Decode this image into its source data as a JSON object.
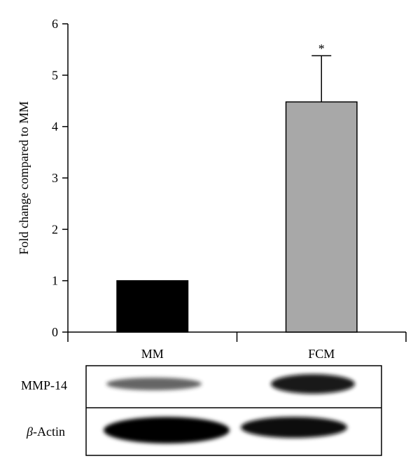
{
  "chart_data": {
    "type": "bar",
    "title": "",
    "xlabel": "",
    "ylabel": "Fold change compared to MM",
    "ylim": [
      0,
      6
    ],
    "yticks": [
      "0",
      "1",
      "2",
      "3",
      "4",
      "5",
      "6"
    ],
    "categories": [
      "MM",
      "FCM"
    ],
    "values": [
      1.0,
      4.48
    ],
    "error_upper": [
      0,
      0.9
    ],
    "bar_colors": [
      "#000000",
      "#a8a8a8"
    ],
    "annotations": [
      {
        "category": "FCM",
        "text": "*"
      }
    ],
    "grid": false
  },
  "blot": {
    "rows": [
      {
        "label": "MMP-14",
        "intensities": [
          0.55,
          0.95
        ]
      },
      {
        "label_prefix": "β",
        "label_suffix": "-Actin",
        "intensities": [
          1.0,
          0.95
        ]
      }
    ]
  }
}
